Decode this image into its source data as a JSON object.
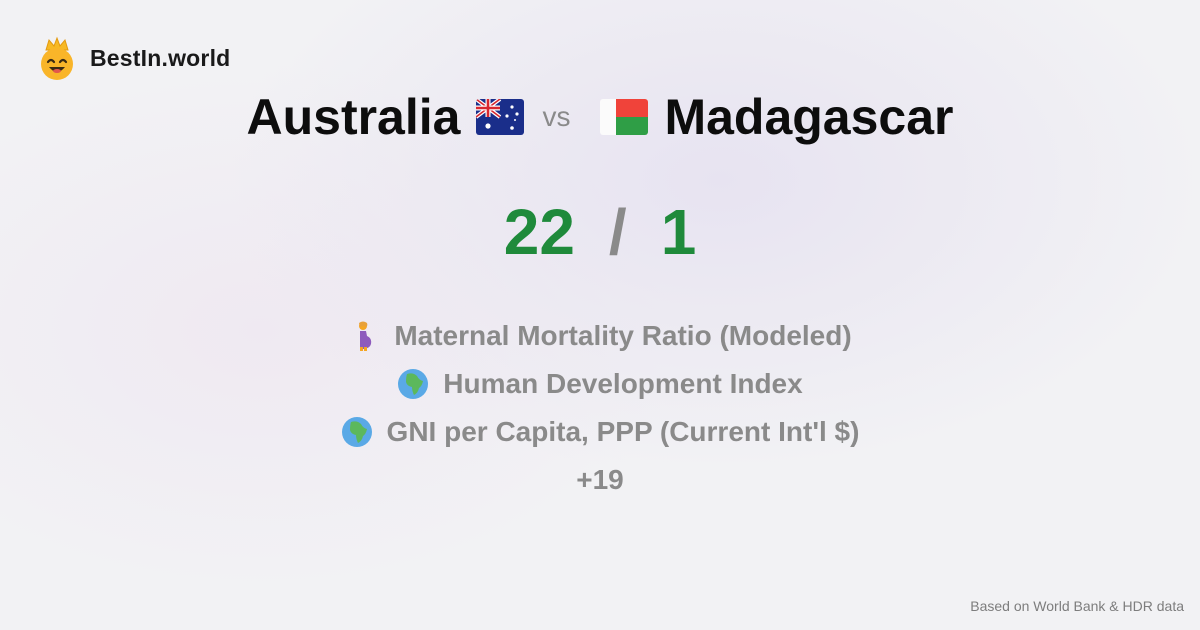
{
  "brand": {
    "name": "BestIn.world",
    "logo_icon": "crown-smiley-icon"
  },
  "comparison": {
    "country_a": "Australia",
    "flag_a": "australia-flag-icon",
    "vs": "vs",
    "country_b": "Madagascar",
    "flag_b": "madagascar-flag-icon"
  },
  "score": {
    "a": "22",
    "separator": "/",
    "b": "1"
  },
  "metrics": [
    {
      "icon": "pregnant-woman-icon",
      "label": "Maternal Mortality Ratio (Modeled)"
    },
    {
      "icon": "globe-africa-icon",
      "label": "Human Development Index"
    },
    {
      "icon": "globe-africa-icon",
      "label": "GNI per Capita, PPP (Current Int'l $)"
    }
  ],
  "more": "+19",
  "footer": {
    "source": "Based on World Bank & HDR data"
  },
  "colors": {
    "score": "#1f8a3b",
    "muted": "#8a8a8a"
  }
}
